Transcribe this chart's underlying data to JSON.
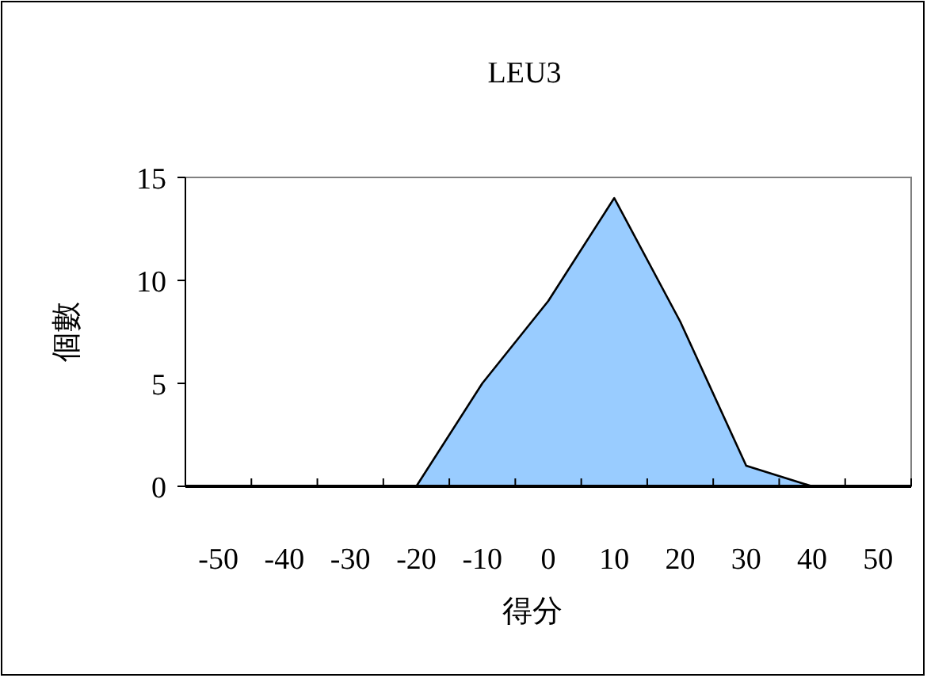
{
  "chart_data": {
    "type": "area",
    "title": "LEU3",
    "xlabel": "得分",
    "ylabel": "個數",
    "categories": [
      "-50",
      "-40",
      "-30",
      "-20",
      "-10",
      "0",
      "10",
      "20",
      "30",
      "40",
      "50"
    ],
    "series": [
      {
        "color": "#99ccff",
        "values": [
          0,
          0,
          0,
          0,
          5,
          9,
          14,
          8,
          1,
          0,
          0
        ]
      }
    ],
    "ylim": [
      0,
      15
    ],
    "yticks": [
      0,
      5,
      10,
      15
    ],
    "grid": false
  }
}
